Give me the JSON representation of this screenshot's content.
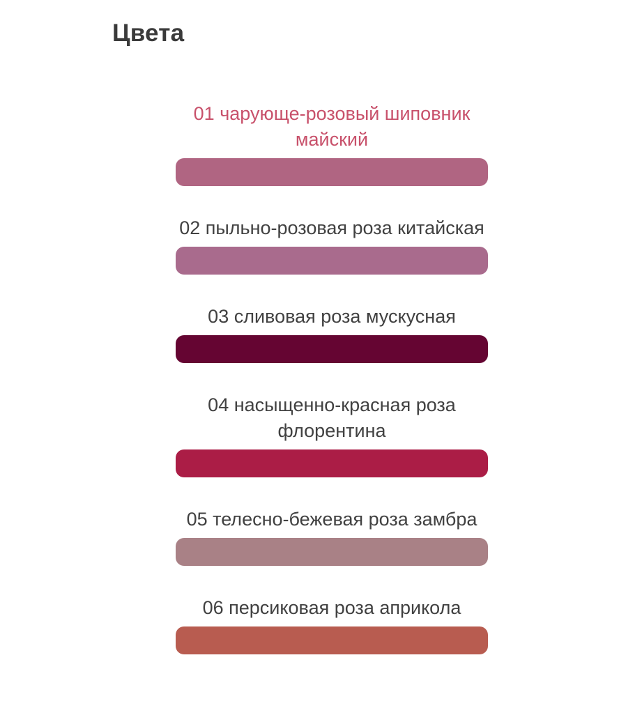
{
  "section": {
    "title": "Цвета"
  },
  "theme": {
    "title_color": "#3a3a3a",
    "accent_color": "#c8516b",
    "label_color": "#414141",
    "background_color": "#ffffff"
  },
  "swatches": [
    {
      "label": "01 чарующе-розовый шиповник\nмайский",
      "color": "#b06582",
      "label_color": "#c8516b",
      "selected": true
    },
    {
      "label": "02 пыльно-розовая роза китайская",
      "color": "#a96b8d",
      "label_color": "#414141",
      "selected": false
    },
    {
      "label": "03 сливовая роза мускусная",
      "color": "#650532",
      "label_color": "#414141",
      "selected": false
    },
    {
      "label": "04 насыщенно-красная роза\nфлорентина",
      "color": "#ab1d46",
      "label_color": "#414141",
      "selected": false
    },
    {
      "label": "05 телесно-бежевая роза замбра",
      "color": "#a98186",
      "label_color": "#414141",
      "selected": false
    },
    {
      "label": "06 персиковая роза априкола",
      "color": "#b85c50",
      "label_color": "#414141",
      "selected": false
    }
  ]
}
